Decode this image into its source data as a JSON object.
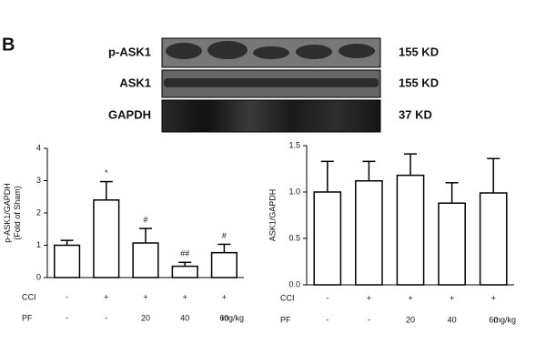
{
  "panel_label": "B",
  "blot": {
    "rows": [
      {
        "label": "p-ASK1",
        "size": "155 KD"
      },
      {
        "label": "ASK1",
        "size": "155 KD"
      },
      {
        "label": "GAPDH",
        "size": "37 KD"
      }
    ]
  },
  "chart_data": [
    {
      "type": "bar",
      "y_label": [
        "p-ASK1/GAPDH",
        "(Fold of Sham)"
      ],
      "category_row_names": [
        "CCI",
        "PF"
      ],
      "category_unit": "mg/kg",
      "categories": [
        [
          "-",
          "-"
        ],
        [
          "+",
          "-"
        ],
        [
          "+",
          "20"
        ],
        [
          "+",
          "40"
        ],
        [
          "+",
          "60"
        ]
      ],
      "values": [
        1.0,
        2.4,
        1.07,
        0.35,
        0.77
      ],
      "errors": [
        0.15,
        0.57,
        0.45,
        0.12,
        0.26
      ],
      "annotations": [
        null,
        "*",
        "#",
        "##",
        "#"
      ],
      "color": "#ffffff",
      "edgecolor": "#000000",
      "ylim": [
        0,
        4
      ],
      "yticks": [
        0,
        1,
        2,
        3,
        4
      ],
      "grid": false
    },
    {
      "type": "bar",
      "y_label": [
        "ASK1/GAPDH"
      ],
      "category_row_names": [
        "CCI",
        "PF"
      ],
      "category_unit": "mg/kg",
      "categories": [
        [
          "-",
          "-"
        ],
        [
          "+",
          "-"
        ],
        [
          "+",
          "20"
        ],
        [
          "+",
          "40"
        ],
        [
          "+",
          "60"
        ]
      ],
      "values": [
        1.0,
        1.12,
        1.18,
        0.88,
        0.99
      ],
      "errors": [
        0.33,
        0.21,
        0.23,
        0.22,
        0.37
      ],
      "color": "#ffffff",
      "edgecolor": "#000000",
      "ylim": [
        0,
        1.5
      ],
      "yticks": [
        {
          "value": 0,
          "label": "0.0"
        },
        {
          "value": 0.5,
          "label": "0.5"
        },
        {
          "value": 1,
          "label": "1.0"
        },
        {
          "value": 1.5,
          "label": "1.5"
        }
      ],
      "grid": false
    }
  ]
}
